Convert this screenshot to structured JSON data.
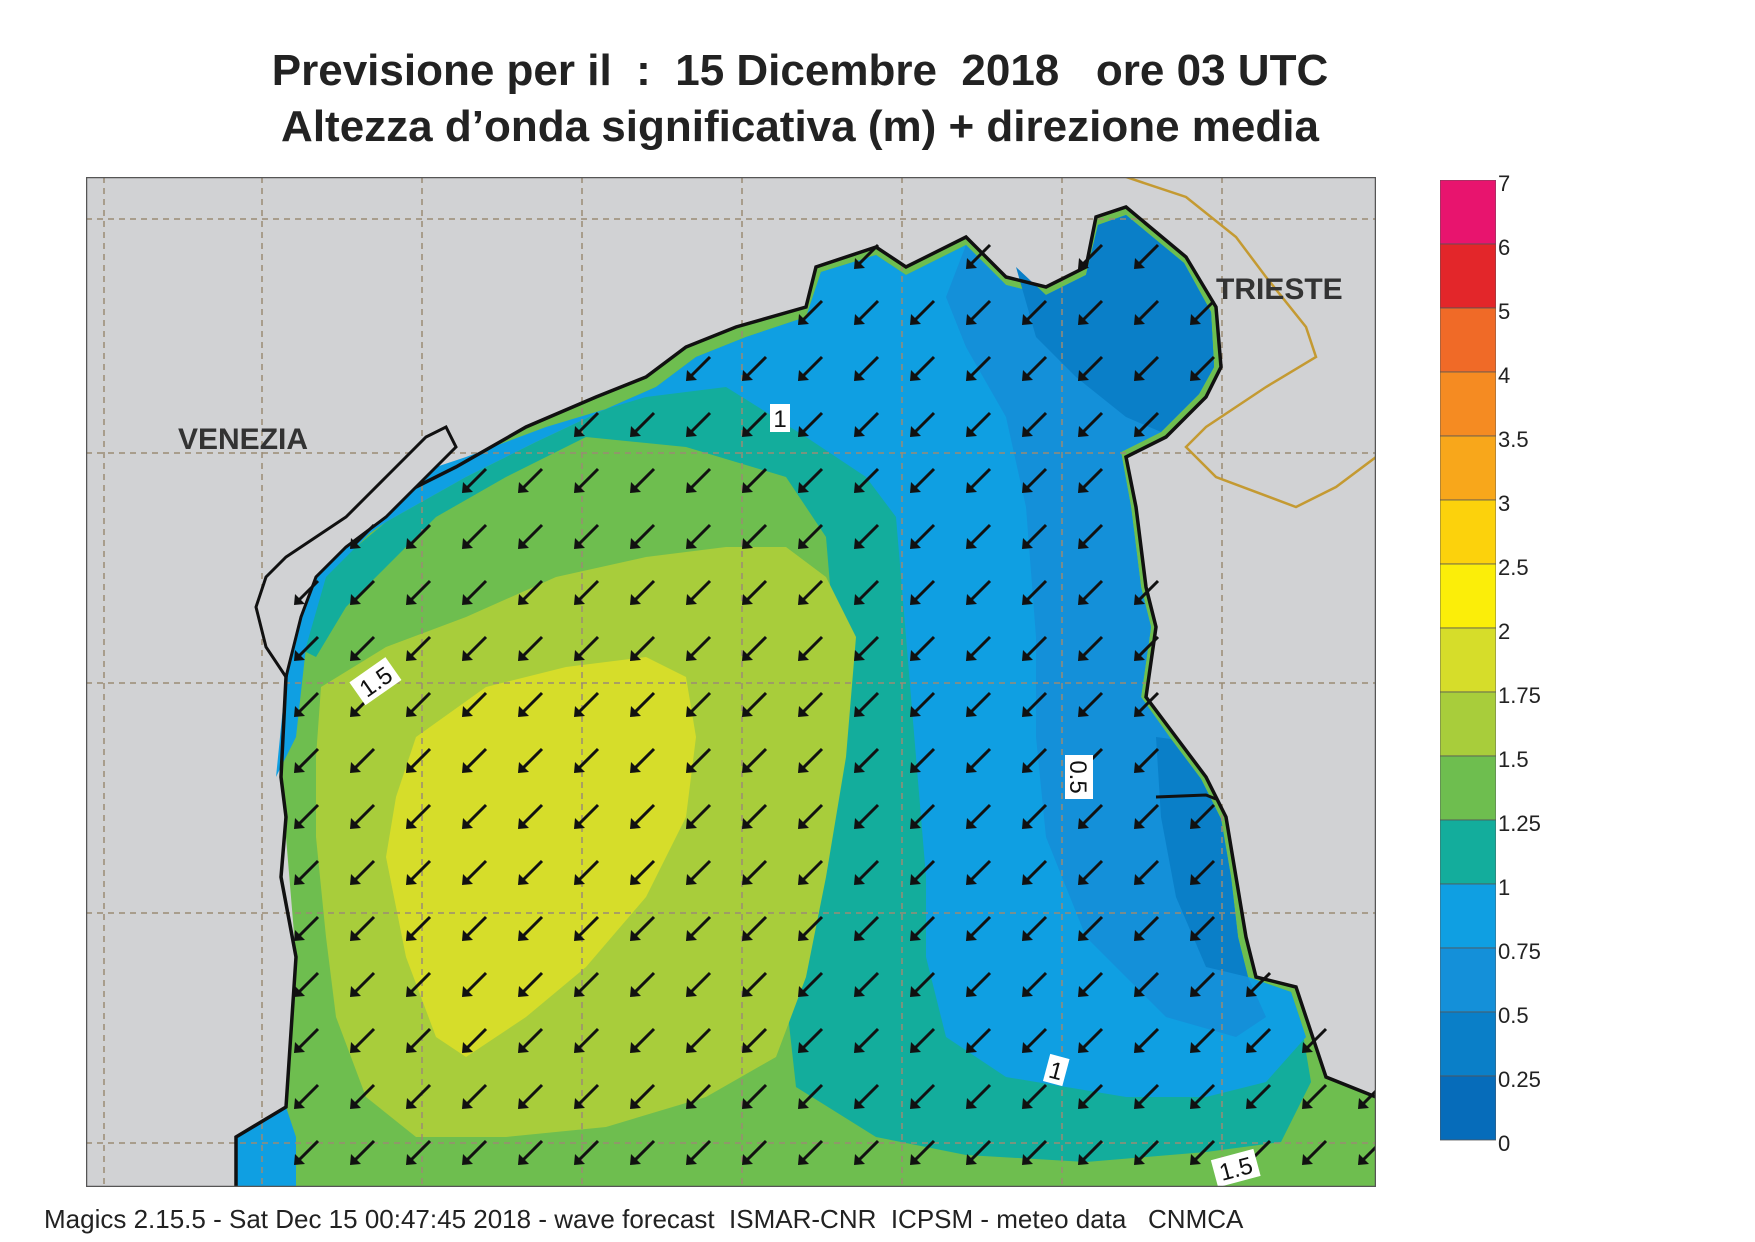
{
  "title": {
    "line1": "Previsione per il  :  15 Dicembre  2018   ore 03 UTC",
    "line2": "Altezza d’onda significativa (m) + direzione media"
  },
  "places": {
    "venezia": "VENEZIA",
    "trieste": "TRIESTE"
  },
  "contour_labels": [
    "1",
    "1.5",
    "0.5",
    "1",
    "1.5"
  ],
  "colorbar": {
    "labels": [
      "7",
      "6",
      "5",
      "4",
      "3.5",
      "3",
      "2.5",
      "2",
      "1.75",
      "1.5",
      "1.25",
      "1",
      "0.75",
      "0.5",
      "0.25",
      "0"
    ],
    "colors": [
      "#e8146e",
      "#e3262a",
      "#f06a27",
      "#f58b22",
      "#f8a71b",
      "#fcd20c",
      "#fbee09",
      "#d6dd2a",
      "#a8cd3b",
      "#6ebe4f",
      "#13ad9c",
      "#0f9fe2",
      "#1490d9",
      "#0a7fc8",
      "#066cba"
    ]
  },
  "colors": {
    "land": "#d1d2d4",
    "coast": "#111111",
    "border": "#c49a32",
    "grid": "#9a8b74"
  },
  "wave_direction": "southwest",
  "footer": "Magics 2.15.5 - Sat Dec 15 00:47:45 2018 - wave forecast  ISMAR-CNR  ICPSM - meteo data   CNMCA"
}
